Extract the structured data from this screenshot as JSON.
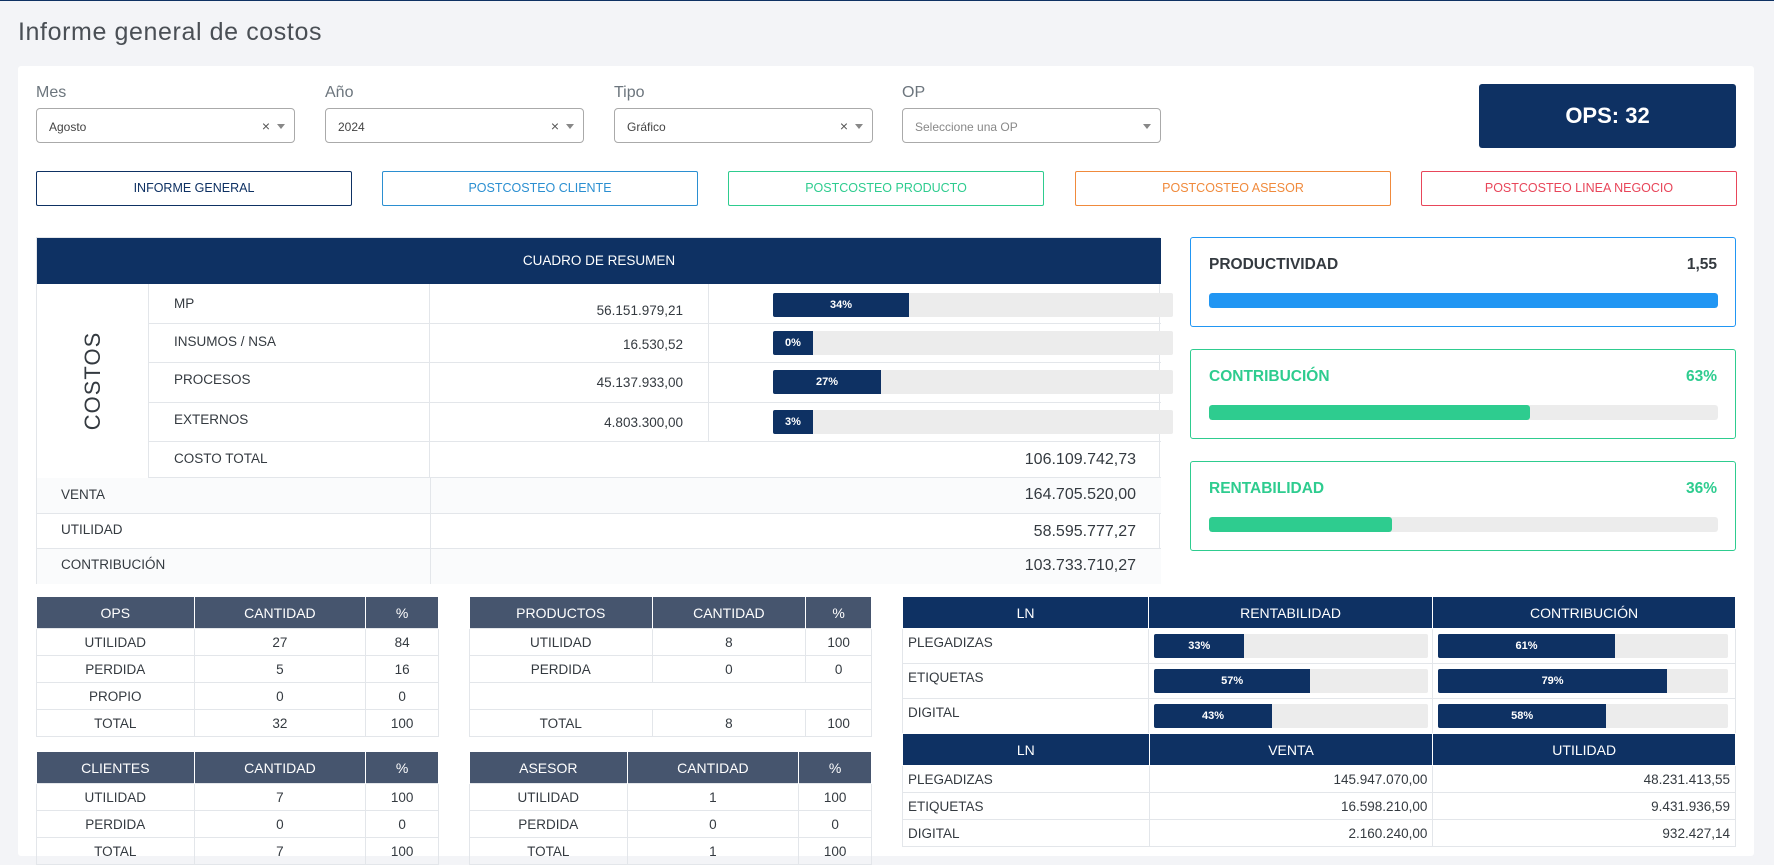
{
  "page_title": "Informe general de costos",
  "filters": {
    "mes": {
      "label": "Mes",
      "value": "Agosto",
      "clear": "×"
    },
    "anio": {
      "label": "Año",
      "value": "2024",
      "clear": "×"
    },
    "tipo": {
      "label": "Tipo",
      "value": "Gráfico",
      "clear": "×"
    },
    "op": {
      "label": "OP",
      "placeholder": "Seleccione una OP"
    }
  },
  "ops_count_label": "OPS: 32",
  "nav_buttons": [
    "INFORME GENERAL",
    "POSTCOSTEO CLIENTE",
    "POSTCOSTEO PRODUCTO",
    "POSTCOSTEO ASESOR",
    "POSTCOSTEO LINEA NEGOCIO"
  ],
  "summary": {
    "header": "CUADRO DE RESUMEN",
    "costos_label": "COSTOS",
    "rows": [
      {
        "label": "MP",
        "value": "56.151.979,21",
        "pct_label": "34%",
        "pct": 34
      },
      {
        "label": "INSUMOS / NSA",
        "value": "16.530,52",
        "pct_label": "0%",
        "pct": 0
      },
      {
        "label": "PROCESOS",
        "value": "45.137.933,00",
        "pct_label": "27%",
        "pct": 27
      },
      {
        "label": "EXTERNOS",
        "value": "4.803.300,00",
        "pct_label": "3%",
        "pct": 3
      }
    ],
    "costo_total": {
      "label": "COSTO TOTAL",
      "value": "106.109.742,73"
    },
    "bottom": [
      {
        "label": "VENTA",
        "value": "164.705.520,00"
      },
      {
        "label": "UTILIDAD",
        "value": "58.595.777,27"
      },
      {
        "label": "CONTRIBUCIÓN",
        "value": "103.733.710,27"
      }
    ]
  },
  "kpis": [
    {
      "label": "PRODUCTIVIDAD",
      "value": "1,55",
      "fill_pct": 100
    },
    {
      "label": "CONTRIBUCIÓN",
      "value": "63%",
      "fill_pct": 63
    },
    {
      "label": "RENTABILIDAD",
      "value": "36%",
      "fill_pct": 36
    }
  ],
  "ops_table": {
    "headers": [
      "OPS",
      "CANTIDAD",
      "%"
    ],
    "rows": [
      [
        "UTILIDAD",
        "27",
        "84"
      ],
      [
        "PERDIDA",
        "5",
        "16"
      ],
      [
        "PROPIO",
        "0",
        "0"
      ],
      [
        "TOTAL",
        "32",
        "100"
      ]
    ]
  },
  "productos_table": {
    "headers": [
      "PRODUCTOS",
      "CANTIDAD",
      "%"
    ],
    "rows": [
      [
        "UTILIDAD",
        "8",
        "100"
      ],
      [
        "PERDIDA",
        "0",
        "0"
      ],
      [
        "",
        "",
        ""
      ],
      [
        "TOTAL",
        "8",
        "100"
      ]
    ]
  },
  "clientes_table": {
    "headers": [
      "CLIENTES",
      "CANTIDAD",
      "%"
    ],
    "rows": [
      [
        "UTILIDAD",
        "7",
        "100"
      ],
      [
        "PERDIDA",
        "0",
        "0"
      ],
      [
        "TOTAL",
        "7",
        "100"
      ]
    ]
  },
  "asesor_table": {
    "headers": [
      "ASESOR",
      "CANTIDAD",
      "%"
    ],
    "rows": [
      [
        "UTILIDAD",
        "1",
        "100"
      ],
      [
        "PERDIDA",
        "0",
        "0"
      ],
      [
        "TOTAL",
        "1",
        "100"
      ]
    ]
  },
  "ln_pct_table": {
    "headers": [
      "LN",
      "RENTABILIDAD",
      "CONTRIBUCIÓN"
    ],
    "rows": [
      {
        "ln": "PLEGADIZAS",
        "rent_label": "33%",
        "rent": 33,
        "contr_label": "61%",
        "contr": 61
      },
      {
        "ln": "ETIQUETAS",
        "rent_label": "57%",
        "rent": 57,
        "contr_label": "79%",
        "contr": 79
      },
      {
        "ln": "DIGITAL",
        "rent_label": "43%",
        "rent": 43,
        "contr_label": "58%",
        "contr": 58
      }
    ]
  },
  "ln_val_table": {
    "headers": [
      "LN",
      "VENTA",
      "UTILIDAD"
    ],
    "rows": [
      [
        "PLEGADIZAS",
        "145.947.070,00",
        "48.231.413,55"
      ],
      [
        "ETIQUETAS",
        "16.598.210,00",
        "9.431.936,59"
      ],
      [
        "DIGITAL",
        "2.160.240,00",
        "932.427,14"
      ]
    ]
  }
}
